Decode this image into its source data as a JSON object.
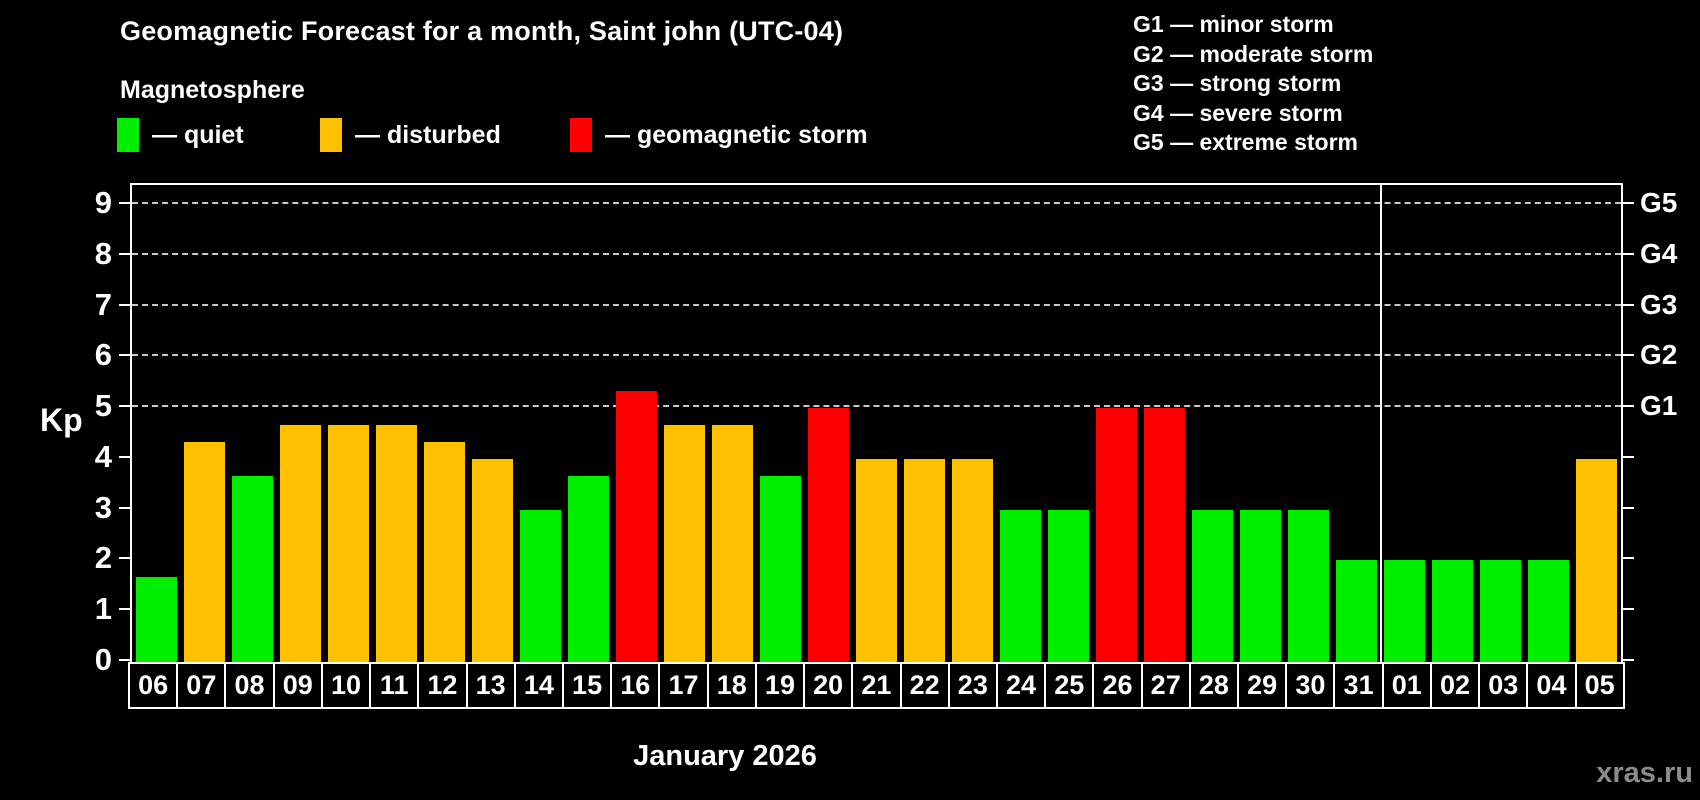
{
  "title": "Geomagnetic Forecast for a month, Saint john (UTC-04)",
  "subtitle": "Magnetosphere",
  "legend": {
    "items": [
      {
        "status": "quiet",
        "label": "— quiet"
      },
      {
        "status": "disturbed",
        "label": "— disturbed"
      },
      {
        "status": "storm",
        "label": "— geomagnetic storm"
      }
    ]
  },
  "g_scale_legend": [
    "G1 — minor storm",
    "G2 — moderate storm",
    "G3 — strong storm",
    "G4 — severe storm",
    "G5 — extreme storm"
  ],
  "colors": {
    "quiet": "#00ee00",
    "disturbed": "#ffc000",
    "storm": "#ff0000",
    "background": "#000000",
    "grid": "#c9c9c9",
    "axis": "#ffffff",
    "watermark": "#8c8c8c"
  },
  "axes": {
    "y_label": "Kp",
    "y_ticks": [
      0,
      1,
      2,
      3,
      4,
      5,
      6,
      7,
      8,
      9
    ],
    "right_labels": [
      {
        "kp": 5,
        "label": "G1"
      },
      {
        "kp": 6,
        "label": "G2"
      },
      {
        "kp": 7,
        "label": "G3"
      },
      {
        "kp": 8,
        "label": "G4"
      },
      {
        "kp": 9,
        "label": "G5"
      }
    ],
    "x_month_label": "January 2026"
  },
  "watermark": "xras.ru",
  "chart_data": {
    "type": "bar",
    "title": "Geomagnetic Forecast for a month, Saint john (UTC-04)",
    "subtitle": "Magnetosphere",
    "xlabel": "January 2026",
    "ylabel": "Kp",
    "ylim": [
      0,
      9.4
    ],
    "grid_kp": [
      5,
      6,
      7,
      8,
      9
    ],
    "legend_position": "top-left",
    "categories": [
      "06",
      "07",
      "08",
      "09",
      "10",
      "11",
      "12",
      "13",
      "14",
      "15",
      "16",
      "17",
      "18",
      "19",
      "20",
      "21",
      "22",
      "23",
      "24",
      "25",
      "26",
      "27",
      "28",
      "29",
      "30",
      "31",
      "01",
      "02",
      "03",
      "04",
      "05"
    ],
    "values": [
      1.67,
      4.33,
      3.67,
      4.67,
      4.67,
      4.67,
      4.33,
      4.0,
      3.0,
      3.67,
      5.33,
      4.67,
      4.67,
      3.67,
      5.0,
      4.0,
      4.0,
      4.0,
      3.0,
      3.0,
      5.0,
      5.0,
      3.0,
      3.0,
      3.0,
      2.0,
      2.0,
      2.0,
      2.0,
      2.0,
      4.0
    ],
    "status": [
      "quiet",
      "disturbed",
      "quiet",
      "disturbed",
      "disturbed",
      "disturbed",
      "disturbed",
      "disturbed",
      "quiet",
      "quiet",
      "storm",
      "disturbed",
      "disturbed",
      "quiet",
      "storm",
      "disturbed",
      "disturbed",
      "disturbed",
      "quiet",
      "quiet",
      "storm",
      "storm",
      "quiet",
      "quiet",
      "quiet",
      "quiet",
      "quiet",
      "quiet",
      "quiet",
      "quiet",
      "disturbed"
    ],
    "month_separator_after_index": 25
  }
}
